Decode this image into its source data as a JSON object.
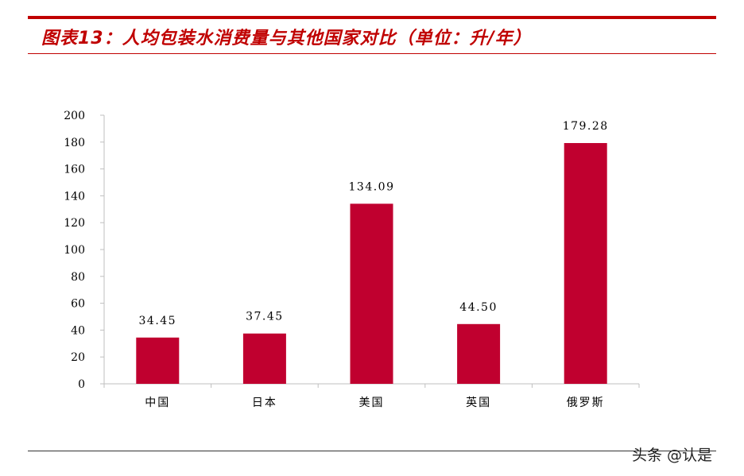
{
  "header": {
    "title": "图表13：人均包装水消费量与其他国家对比（单位：升/年）"
  },
  "watermark": "头条 @认是",
  "colors": {
    "bar": "#c0002f",
    "accent": "#c00000"
  },
  "chart_data": {
    "type": "bar",
    "title": "图表13：人均包装水消费量与其他国家对比（单位：升/年）",
    "categories": [
      "中国",
      "日本",
      "美国",
      "英国",
      "俄罗斯"
    ],
    "values": [
      34.45,
      37.45,
      134.09,
      44.5,
      179.28
    ],
    "value_labels": [
      "34.45",
      "37.45",
      "134.09",
      "44.50",
      "179.28"
    ],
    "ylim": [
      0,
      200
    ],
    "yticks": [
      0,
      20,
      40,
      60,
      80,
      100,
      120,
      140,
      160,
      180,
      200
    ],
    "xlabel": "",
    "ylabel": "",
    "grid": false,
    "legend": "none"
  }
}
